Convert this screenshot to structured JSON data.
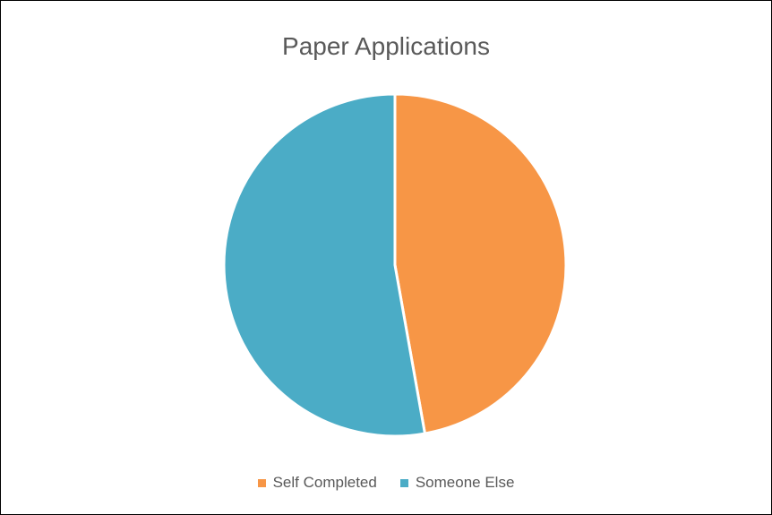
{
  "chart_data": {
    "type": "pie",
    "title": "Paper Applications",
    "categories": [
      "Self Completed",
      "Someone Else"
    ],
    "values": [
      47.2,
      52.8
    ],
    "colors": [
      "#F79646",
      "#4BACC6"
    ],
    "start_angle_deg": 0,
    "direction": "clockwise",
    "legend_position": "bottom"
  }
}
